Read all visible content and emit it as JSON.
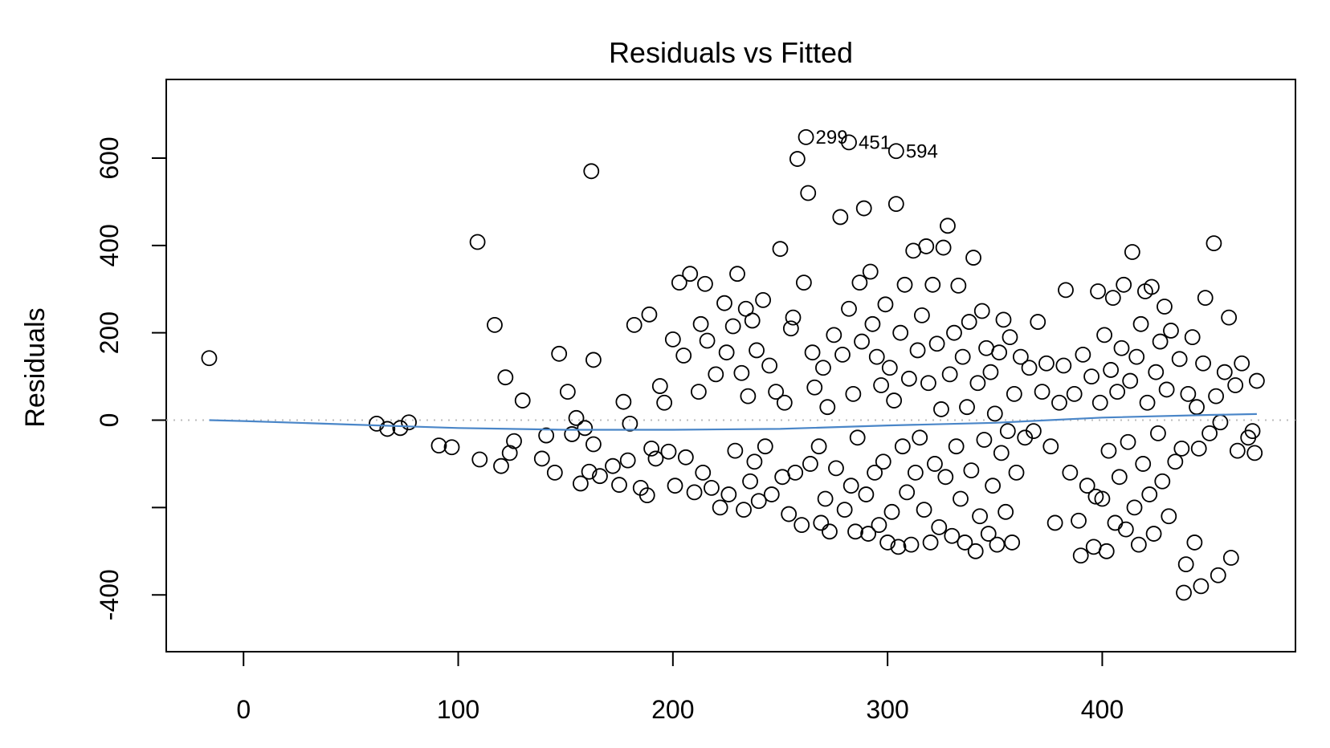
{
  "chart_data": {
    "type": "scatter",
    "title": "Residuals vs Fitted",
    "xlabel": "",
    "ylabel": "Residuals",
    "xlim": [
      -36,
      490
    ],
    "ylim": [
      -530,
      780
    ],
    "xticks": [
      0,
      100,
      200,
      300,
      400
    ],
    "yticks": [
      -400,
      -200,
      0,
      200,
      400,
      600
    ],
    "ytick_labels": [
      "-400",
      "",
      "0",
      "200",
      "400",
      "600"
    ],
    "grid": false,
    "reference_line": {
      "y": 0,
      "color": "#bbbbbb",
      "style": "dotted"
    },
    "smooth_line": {
      "color": "#4a86c8",
      "x": [
        -16,
        0,
        50,
        100,
        150,
        200,
        250,
        300,
        350,
        400,
        450,
        472
      ],
      "y": [
        0,
        -2,
        -10,
        -18,
        -22,
        -22,
        -20,
        -12,
        -6,
        6,
        12,
        14
      ]
    },
    "labeled_points": [
      {
        "x": 262,
        "y": 648,
        "label": "299"
      },
      {
        "x": 282,
        "y": 636,
        "label": "451"
      },
      {
        "x": 304,
        "y": 616,
        "label": "594"
      }
    ],
    "points": [
      [
        -16,
        142
      ],
      [
        62,
        -8
      ],
      [
        67,
        -20
      ],
      [
        73,
        -18
      ],
      [
        77,
        -5
      ],
      [
        91,
        -58
      ],
      [
        97,
        -62
      ],
      [
        109,
        408
      ],
      [
        110,
        -90
      ],
      [
        117,
        218
      ],
      [
        120,
        -105
      ],
      [
        122,
        98
      ],
      [
        124,
        -75
      ],
      [
        126,
        -48
      ],
      [
        130,
        45
      ],
      [
        139,
        -88
      ],
      [
        141,
        -35
      ],
      [
        145,
        -120
      ],
      [
        147,
        152
      ],
      [
        151,
        65
      ],
      [
        153,
        -32
      ],
      [
        155,
        5
      ],
      [
        157,
        -145
      ],
      [
        159,
        -18
      ],
      [
        161,
        -118
      ],
      [
        162,
        570
      ],
      [
        163,
        138
      ],
      [
        163,
        -55
      ],
      [
        166,
        -128
      ],
      [
        172,
        -105
      ],
      [
        175,
        -148
      ],
      [
        177,
        42
      ],
      [
        179,
        -92
      ],
      [
        180,
        -8
      ],
      [
        182,
        218
      ],
      [
        185,
        -155
      ],
      [
        188,
        -172
      ],
      [
        189,
        242
      ],
      [
        190,
        -65
      ],
      [
        192,
        -88
      ],
      [
        194,
        78
      ],
      [
        196,
        40
      ],
      [
        198,
        -72
      ],
      [
        200,
        185
      ],
      [
        201,
        -150
      ],
      [
        203,
        315
      ],
      [
        205,
        148
      ],
      [
        206,
        -85
      ],
      [
        208,
        335
      ],
      [
        210,
        -165
      ],
      [
        212,
        65
      ],
      [
        213,
        220
      ],
      [
        214,
        -120
      ],
      [
        215,
        312
      ],
      [
        216,
        182
      ],
      [
        218,
        -155
      ],
      [
        220,
        105
      ],
      [
        222,
        -200
      ],
      [
        224,
        268
      ],
      [
        225,
        155
      ],
      [
        226,
        -170
      ],
      [
        228,
        215
      ],
      [
        229,
        -70
      ],
      [
        230,
        335
      ],
      [
        232,
        108
      ],
      [
        233,
        -205
      ],
      [
        234,
        255
      ],
      [
        235,
        55
      ],
      [
        236,
        -140
      ],
      [
        237,
        228
      ],
      [
        238,
        -95
      ],
      [
        239,
        160
      ],
      [
        240,
        -185
      ],
      [
        242,
        275
      ],
      [
        243,
        -60
      ],
      [
        245,
        125
      ],
      [
        246,
        -170
      ],
      [
        248,
        65
      ],
      [
        250,
        392
      ],
      [
        251,
        -130
      ],
      [
        252,
        40
      ],
      [
        254,
        -215
      ],
      [
        255,
        210
      ],
      [
        256,
        235
      ],
      [
        257,
        -120
      ],
      [
        258,
        598
      ],
      [
        260,
        -240
      ],
      [
        261,
        315
      ],
      [
        263,
        520
      ],
      [
        264,
        -100
      ],
      [
        265,
        155
      ],
      [
        266,
        75
      ],
      [
        268,
        -60
      ],
      [
        269,
        -235
      ],
      [
        270,
        120
      ],
      [
        271,
        -180
      ],
      [
        272,
        30
      ],
      [
        273,
        -255
      ],
      [
        275,
        195
      ],
      [
        276,
        -110
      ],
      [
        278,
        465
      ],
      [
        279,
        150
      ],
      [
        280,
        -205
      ],
      [
        282,
        255
      ],
      [
        283,
        -150
      ],
      [
        284,
        60
      ],
      [
        285,
        -255
      ],
      [
        286,
        -40
      ],
      [
        287,
        315
      ],
      [
        288,
        180
      ],
      [
        289,
        485
      ],
      [
        290,
        -170
      ],
      [
        291,
        -260
      ],
      [
        292,
        340
      ],
      [
        293,
        220
      ],
      [
        294,
        -120
      ],
      [
        295,
        145
      ],
      [
        296,
        -240
      ],
      [
        297,
        80
      ],
      [
        298,
        -95
      ],
      [
        299,
        265
      ],
      [
        300,
        -280
      ],
      [
        301,
        120
      ],
      [
        302,
        -210
      ],
      [
        303,
        45
      ],
      [
        304,
        495
      ],
      [
        305,
        -290
      ],
      [
        306,
        200
      ],
      [
        307,
        -60
      ],
      [
        308,
        310
      ],
      [
        309,
        -165
      ],
      [
        310,
        95
      ],
      [
        311,
        -285
      ],
      [
        312,
        388
      ],
      [
        313,
        -120
      ],
      [
        314,
        160
      ],
      [
        315,
        -40
      ],
      [
        316,
        240
      ],
      [
        317,
        -205
      ],
      [
        318,
        398
      ],
      [
        319,
        85
      ],
      [
        320,
        -280
      ],
      [
        321,
        310
      ],
      [
        322,
        -100
      ],
      [
        323,
        175
      ],
      [
        324,
        -245
      ],
      [
        325,
        25
      ],
      [
        326,
        395
      ],
      [
        327,
        -130
      ],
      [
        328,
        445
      ],
      [
        329,
        105
      ],
      [
        330,
        -265
      ],
      [
        331,
        200
      ],
      [
        332,
        -60
      ],
      [
        333,
        308
      ],
      [
        334,
        -180
      ],
      [
        335,
        145
      ],
      [
        336,
        -280
      ],
      [
        337,
        30
      ],
      [
        338,
        225
      ],
      [
        339,
        -115
      ],
      [
        340,
        372
      ],
      [
        341,
        -300
      ],
      [
        342,
        85
      ],
      [
        343,
        -220
      ],
      [
        344,
        250
      ],
      [
        345,
        -45
      ],
      [
        346,
        165
      ],
      [
        347,
        -260
      ],
      [
        348,
        110
      ],
      [
        349,
        -150
      ],
      [
        350,
        15
      ],
      [
        351,
        -285
      ],
      [
        352,
        155
      ],
      [
        353,
        -75
      ],
      [
        354,
        230
      ],
      [
        355,
        -210
      ],
      [
        356,
        -25
      ],
      [
        357,
        190
      ],
      [
        358,
        -280
      ],
      [
        359,
        60
      ],
      [
        360,
        -120
      ],
      [
        362,
        145
      ],
      [
        364,
        -40
      ],
      [
        366,
        120
      ],
      [
        368,
        -25
      ],
      [
        370,
        225
      ],
      [
        372,
        65
      ],
      [
        374,
        130
      ],
      [
        376,
        -60
      ],
      [
        378,
        -235
      ],
      [
        380,
        40
      ],
      [
        382,
        125
      ],
      [
        383,
        298
      ],
      [
        385,
        -120
      ],
      [
        387,
        60
      ],
      [
        389,
        -230
      ],
      [
        390,
        -310
      ],
      [
        391,
        150
      ],
      [
        393,
        -150
      ],
      [
        395,
        100
      ],
      [
        396,
        -290
      ],
      [
        397,
        -175
      ],
      [
        398,
        295
      ],
      [
        399,
        40
      ],
      [
        400,
        -180
      ],
      [
        401,
        195
      ],
      [
        402,
        -300
      ],
      [
        403,
        -70
      ],
      [
        404,
        115
      ],
      [
        405,
        280
      ],
      [
        406,
        -235
      ],
      [
        407,
        65
      ],
      [
        408,
        -130
      ],
      [
        409,
        165
      ],
      [
        410,
        310
      ],
      [
        411,
        -250
      ],
      [
        412,
        -50
      ],
      [
        413,
        90
      ],
      [
        414,
        385
      ],
      [
        415,
        -200
      ],
      [
        416,
        145
      ],
      [
        417,
        -285
      ],
      [
        418,
        220
      ],
      [
        419,
        -100
      ],
      [
        420,
        295
      ],
      [
        421,
        40
      ],
      [
        422,
        -170
      ],
      [
        423,
        305
      ],
      [
        424,
        -260
      ],
      [
        425,
        110
      ],
      [
        426,
        -30
      ],
      [
        427,
        180
      ],
      [
        428,
        -140
      ],
      [
        429,
        260
      ],
      [
        430,
        70
      ],
      [
        431,
        -220
      ],
      [
        432,
        205
      ],
      [
        434,
        -95
      ],
      [
        436,
        140
      ],
      [
        437,
        -65
      ],
      [
        438,
        -395
      ],
      [
        439,
        -330
      ],
      [
        440,
        60
      ],
      [
        442,
        190
      ],
      [
        443,
        -280
      ],
      [
        444,
        30
      ],
      [
        445,
        -65
      ],
      [
        446,
        -380
      ],
      [
        447,
        130
      ],
      [
        448,
        280
      ],
      [
        450,
        -30
      ],
      [
        452,
        405
      ],
      [
        453,
        55
      ],
      [
        454,
        -355
      ],
      [
        455,
        -5
      ],
      [
        457,
        110
      ],
      [
        459,
        235
      ],
      [
        460,
        -315
      ],
      [
        462,
        80
      ],
      [
        463,
        -70
      ],
      [
        465,
        130
      ],
      [
        468,
        -40
      ],
      [
        470,
        -25
      ],
      [
        471,
        -75
      ],
      [
        472,
        90
      ]
    ]
  }
}
